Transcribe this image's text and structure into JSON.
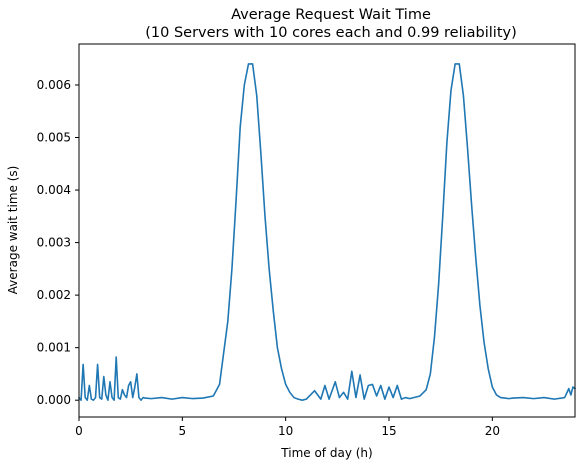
{
  "chart_data": {
    "type": "line",
    "title": "Average Request Wait Time",
    "subtitle": "(10 Servers with 10 cores each and 0.99 reliability)",
    "xlabel": "Time of day (h)",
    "ylabel": "Average wait time (s)",
    "xlim": [
      0,
      24
    ],
    "ylim": [
      -0.00032,
      0.00678
    ],
    "x_ticks": [
      0,
      5,
      10,
      15,
      20
    ],
    "x_tick_labels": [
      "0",
      "5",
      "10",
      "15",
      "20"
    ],
    "y_ticks": [
      0.0,
      0.001,
      0.002,
      0.003,
      0.004,
      0.005,
      0.006
    ],
    "y_tick_labels": [
      "0.000",
      "0.001",
      "0.002",
      "0.003",
      "0.004",
      "0.005",
      "0.006"
    ],
    "grid": false,
    "legend": "none",
    "series": [
      {
        "color": "#1f77b4",
        "x": [
          0,
          0.1,
          0.2,
          0.3,
          0.4,
          0.5,
          0.6,
          0.7,
          0.8,
          0.9,
          1.0,
          1.1,
          1.2,
          1.3,
          1.4,
          1.5,
          1.6,
          1.7,
          1.8,
          1.9,
          2.0,
          2.1,
          2.2,
          2.3,
          2.4,
          2.5,
          2.6,
          2.7,
          2.8,
          2.9,
          3.0,
          3.1,
          3.2,
          3.5,
          4.0,
          4.5,
          5.0,
          5.5,
          6.0,
          6.5,
          6.8,
          7.0,
          7.2,
          7.4,
          7.6,
          7.8,
          8.0,
          8.2,
          8.4,
          8.6,
          8.8,
          9.0,
          9.2,
          9.4,
          9.6,
          9.8,
          10.0,
          10.2,
          10.4,
          10.6,
          10.8,
          11.0,
          11.4,
          11.7,
          11.9,
          12.1,
          12.4,
          12.6,
          12.8,
          13.0,
          13.2,
          13.4,
          13.6,
          13.8,
          14.0,
          14.2,
          14.4,
          14.6,
          14.8,
          15.0,
          15.2,
          15.4,
          15.6,
          15.8,
          16.0,
          16.5,
          16.8,
          17.0,
          17.2,
          17.4,
          17.6,
          17.8,
          18.0,
          18.2,
          18.4,
          18.6,
          18.8,
          19.0,
          19.2,
          19.4,
          19.6,
          19.8,
          20.0,
          20.2,
          20.4,
          20.6,
          20.8,
          21.0,
          21.5,
          22.0,
          22.5,
          23.0,
          23.5,
          23.7,
          23.8,
          23.9,
          24.0
        ],
        "y": [
          5e-05,
          0.0,
          0.00068,
          5e-05,
          0.0,
          0.00028,
          2e-05,
          0.0,
          5e-05,
          0.00068,
          5e-05,
          2e-05,
          0.00045,
          0.0001,
          0.0,
          0.00035,
          5e-05,
          0.0,
          0.00082,
          5e-05,
          2e-05,
          0.0002,
          0.0001,
          5e-05,
          0.00028,
          0.00035,
          5e-05,
          0.00025,
          0.0005,
          5e-05,
          0.0,
          5e-05,
          4e-05,
          3e-05,
          5e-05,
          2e-05,
          5e-05,
          3e-05,
          4e-05,
          8e-05,
          0.0003,
          0.0009,
          0.0015,
          0.0025,
          0.0038,
          0.0052,
          0.006,
          0.0064,
          0.0064,
          0.0058,
          0.0047,
          0.0035,
          0.0025,
          0.0017,
          0.001,
          0.0006,
          0.0003,
          0.00015,
          5e-05,
          2e-05,
          0.0,
          2e-05,
          0.00018,
          2e-05,
          0.00028,
          2e-05,
          0.00035,
          5e-05,
          0.00015,
          2e-05,
          0.00055,
          5e-05,
          0.00048,
          2e-05,
          0.00028,
          0.0003,
          8e-05,
          0.00028,
          2e-05,
          0.00025,
          5e-05,
          0.00028,
          2e-05,
          5e-05,
          3e-05,
          8e-05,
          0.0002,
          0.0005,
          0.0012,
          0.0022,
          0.0035,
          0.0049,
          0.0059,
          0.0064,
          0.0064,
          0.0058,
          0.0048,
          0.0037,
          0.0027,
          0.0018,
          0.0011,
          0.0006,
          0.00025,
          0.0001,
          5e-05,
          4e-05,
          3e-05,
          4e-05,
          5e-05,
          3e-05,
          5e-05,
          2e-05,
          5e-05,
          0.00022,
          0.0001,
          0.00025,
          0.00022
        ]
      }
    ]
  }
}
